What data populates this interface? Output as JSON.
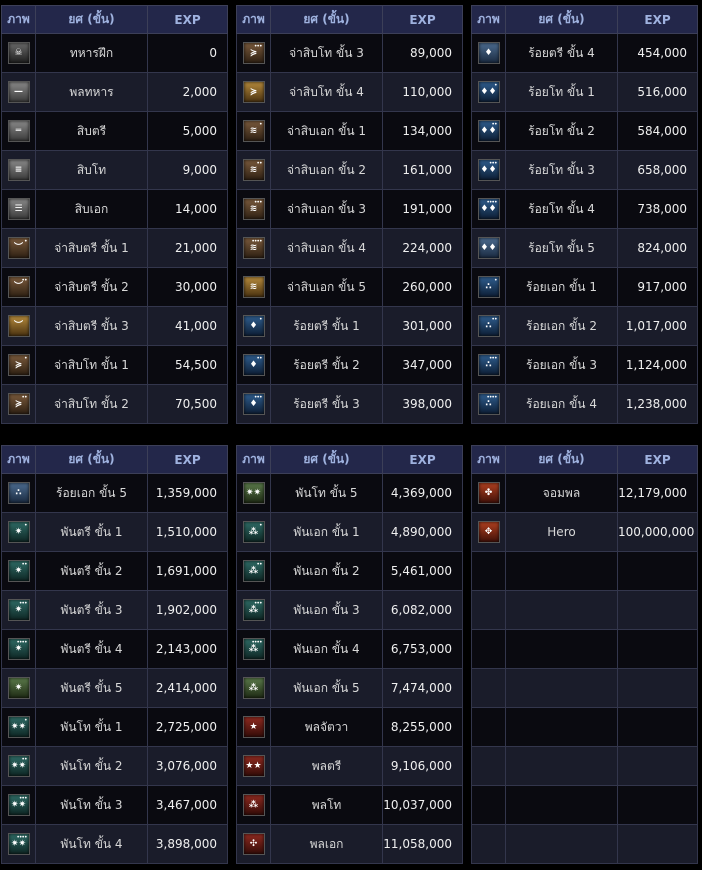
{
  "headers": {
    "image": "ภาพ",
    "rank": "ยศ (ขั้น)",
    "exp": "EXP"
  },
  "tables": [
    {
      "rows": [
        {
          "icon": "skull-badge-icon",
          "kind": "skull",
          "glyph": "☠",
          "dots": "",
          "name": "ทหารฝึก",
          "exp": "0"
        },
        {
          "icon": "one-bar-badge-icon",
          "kind": "gray",
          "glyph": "—",
          "dots": "",
          "name": "พลทหาร",
          "exp": "2,000"
        },
        {
          "icon": "two-bar-badge-icon",
          "kind": "gray",
          "glyph": "═",
          "dots": "",
          "name": "สิบตรี",
          "exp": "5,000"
        },
        {
          "icon": "three-bar-badge-icon",
          "kind": "gray",
          "glyph": "≡",
          "dots": "",
          "name": "สิบโท",
          "exp": "9,000"
        },
        {
          "icon": "four-bar-badge-icon",
          "kind": "gray",
          "glyph": "☰",
          "dots": "",
          "name": "สิบเอก",
          "exp": "14,000"
        },
        {
          "icon": "chevron-badge-icon",
          "kind": "brown",
          "glyph": "︶",
          "dots": "•",
          "name": "จ่าสิบตรี ขั้น 1",
          "exp": "21,000"
        },
        {
          "icon": "chevron-badge-icon",
          "kind": "brown",
          "glyph": "︶",
          "dots": "••",
          "name": "จ่าสิบตรี ขั้น 2",
          "exp": "30,000"
        },
        {
          "icon": "chevron-badge-icon",
          "kind": "gold",
          "glyph": "︶",
          "dots": "",
          "name": "จ่าสิบตรี ขั้น 3",
          "exp": "41,000"
        },
        {
          "icon": "double-chevron-badge-icon",
          "kind": "brown",
          "glyph": "≽",
          "dots": "•",
          "name": "จ่าสิบโท ขั้น 1",
          "exp": "54,500"
        },
        {
          "icon": "double-chevron-badge-icon",
          "kind": "brown",
          "glyph": "≽",
          "dots": "••",
          "name": "จ่าสิบโท ขั้น 2",
          "exp": "70,500"
        }
      ]
    },
    {
      "rows": [
        {
          "icon": "double-chevron-badge-icon",
          "kind": "brown",
          "glyph": "≽",
          "dots": "•••",
          "name": "จ่าสิบโท ขั้น 3",
          "exp": "89,000"
        },
        {
          "icon": "double-chevron-badge-icon",
          "kind": "gold",
          "glyph": "≽",
          "dots": "",
          "name": "จ่าสิบโท ขั้น 4",
          "exp": "110,000"
        },
        {
          "icon": "triple-chevron-badge-icon",
          "kind": "brown",
          "glyph": "≋",
          "dots": "•",
          "name": "จ่าสิบเอก ขั้น 1",
          "exp": "134,000"
        },
        {
          "icon": "triple-chevron-badge-icon",
          "kind": "brown",
          "glyph": "≋",
          "dots": "••",
          "name": "จ่าสิบเอก ขั้น 2",
          "exp": "161,000"
        },
        {
          "icon": "triple-chevron-badge-icon",
          "kind": "brown",
          "glyph": "≋",
          "dots": "•••",
          "name": "จ่าสิบเอก ขั้น 3",
          "exp": "191,000"
        },
        {
          "icon": "triple-chevron-badge-icon",
          "kind": "brown",
          "glyph": "≋",
          "dots": "••••",
          "name": "จ่าสิบเอก ขั้น 4",
          "exp": "224,000"
        },
        {
          "icon": "triple-chevron-badge-icon",
          "kind": "gold",
          "glyph": "≋",
          "dots": "",
          "name": "จ่าสิบเอก ขั้น 5",
          "exp": "260,000"
        },
        {
          "icon": "single-pip-badge-icon",
          "kind": "blue",
          "glyph": "♦",
          "dots": "•",
          "name": "ร้อยตรี ขั้น 1",
          "exp": "301,000"
        },
        {
          "icon": "single-pip-badge-icon",
          "kind": "blue",
          "glyph": "♦",
          "dots": "••",
          "name": "ร้อยตรี ขั้น 2",
          "exp": "347,000"
        },
        {
          "icon": "single-pip-badge-icon",
          "kind": "blue",
          "glyph": "♦",
          "dots": "•••",
          "name": "ร้อยตรี ขั้น 3",
          "exp": "398,000"
        }
      ]
    },
    {
      "rows": [
        {
          "icon": "single-pip-badge-icon",
          "kind": "blueg",
          "glyph": "♦",
          "dots": "",
          "name": "ร้อยตรี ขั้น 4",
          "exp": "454,000"
        },
        {
          "icon": "double-pip-badge-icon",
          "kind": "blue",
          "glyph": "♦♦",
          "dots": "•",
          "name": "ร้อยโท ขั้น 1",
          "exp": "516,000"
        },
        {
          "icon": "double-pip-badge-icon",
          "kind": "blue",
          "glyph": "♦♦",
          "dots": "••",
          "name": "ร้อยโท ขั้น 2",
          "exp": "584,000"
        },
        {
          "icon": "double-pip-badge-icon",
          "kind": "blue",
          "glyph": "♦♦",
          "dots": "•••",
          "name": "ร้อยโท ขั้น 3",
          "exp": "658,000"
        },
        {
          "icon": "double-pip-badge-icon",
          "kind": "blue",
          "glyph": "♦♦",
          "dots": "••••",
          "name": "ร้อยโท ขั้น 4",
          "exp": "738,000"
        },
        {
          "icon": "double-pip-badge-icon",
          "kind": "blueg",
          "glyph": "♦♦",
          "dots": "",
          "name": "ร้อยโท ขั้น 5",
          "exp": "824,000"
        },
        {
          "icon": "triple-pip-badge-icon",
          "kind": "blue",
          "glyph": "∴",
          "dots": "•",
          "name": "ร้อยเอก ขั้น 1",
          "exp": "917,000"
        },
        {
          "icon": "triple-pip-badge-icon",
          "kind": "blue",
          "glyph": "∴",
          "dots": "••",
          "name": "ร้อยเอก ขั้น 2",
          "exp": "1,017,000"
        },
        {
          "icon": "triple-pip-badge-icon",
          "kind": "blue",
          "glyph": "∴",
          "dots": "•••",
          "name": "ร้อยเอก ขั้น 3",
          "exp": "1,124,000"
        },
        {
          "icon": "triple-pip-badge-icon",
          "kind": "blue",
          "glyph": "∴",
          "dots": "••••",
          "name": "ร้อยเอก ขั้น 4",
          "exp": "1,238,000"
        }
      ]
    },
    {
      "rows": [
        {
          "icon": "triple-pip-badge-icon",
          "kind": "blueg",
          "glyph": "∴",
          "dots": "",
          "name": "ร้อยเอก ขั้น 5",
          "exp": "1,359,000"
        },
        {
          "icon": "single-star-badge-icon",
          "kind": "teal",
          "glyph": "✷",
          "dots": "•",
          "name": "พันตรี ขั้น 1",
          "exp": "1,510,000"
        },
        {
          "icon": "single-star-badge-icon",
          "kind": "teal",
          "glyph": "✷",
          "dots": "••",
          "name": "พันตรี ขั้น 2",
          "exp": "1,691,000"
        },
        {
          "icon": "single-star-badge-icon",
          "kind": "teal",
          "glyph": "✷",
          "dots": "•••",
          "name": "พันตรี ขั้น 3",
          "exp": "1,902,000"
        },
        {
          "icon": "single-star-badge-icon",
          "kind": "teal",
          "glyph": "✷",
          "dots": "••••",
          "name": "พันตรี ขั้น 4",
          "exp": "2,143,000"
        },
        {
          "icon": "single-star-badge-icon",
          "kind": "tealg",
          "glyph": "✷",
          "dots": "",
          "name": "พันตรี ขั้น 5",
          "exp": "2,414,000"
        },
        {
          "icon": "double-star-badge-icon",
          "kind": "teal",
          "glyph": "✷✷",
          "dots": "•",
          "name": "พันโท ขั้น 1",
          "exp": "2,725,000"
        },
        {
          "icon": "double-star-badge-icon",
          "kind": "teal",
          "glyph": "✷✷",
          "dots": "••",
          "name": "พันโท ขั้น 2",
          "exp": "3,076,000"
        },
        {
          "icon": "double-star-badge-icon",
          "kind": "teal",
          "glyph": "✷✷",
          "dots": "•••",
          "name": "พันโท ขั้น 3",
          "exp": "3,467,000"
        },
        {
          "icon": "double-star-badge-icon",
          "kind": "teal",
          "glyph": "✷✷",
          "dots": "••••",
          "name": "พันโท ขั้น 4",
          "exp": "3,898,000"
        }
      ]
    },
    {
      "rows": [
        {
          "icon": "double-star-badge-icon",
          "kind": "tealg",
          "glyph": "✷✷",
          "dots": "",
          "name": "พันโท ขั้น 5",
          "exp": "4,369,000"
        },
        {
          "icon": "triple-star-badge-icon",
          "kind": "teal",
          "glyph": "⁂",
          "dots": "•",
          "name": "พันเอก ขั้น 1",
          "exp": "4,890,000"
        },
        {
          "icon": "triple-star-badge-icon",
          "kind": "teal",
          "glyph": "⁂",
          "dots": "••",
          "name": "พันเอก ขั้น 2",
          "exp": "5,461,000"
        },
        {
          "icon": "triple-star-badge-icon",
          "kind": "teal",
          "glyph": "⁂",
          "dots": "•••",
          "name": "พันเอก ขั้น 3",
          "exp": "6,082,000"
        },
        {
          "icon": "triple-star-badge-icon",
          "kind": "teal",
          "glyph": "⁂",
          "dots": "••••",
          "name": "พันเอก ขั้น 4",
          "exp": "6,753,000"
        },
        {
          "icon": "triple-star-badge-icon",
          "kind": "tealg",
          "glyph": "⁂",
          "dots": "",
          "name": "พันเอก ขั้น 5",
          "exp": "7,474,000"
        },
        {
          "icon": "general-one-star-badge-icon",
          "kind": "red",
          "glyph": "★",
          "dots": "",
          "name": "พลจัตวา",
          "exp": "8,255,000"
        },
        {
          "icon": "general-two-star-badge-icon",
          "kind": "red",
          "glyph": "★★",
          "dots": "",
          "name": "พลตรี",
          "exp": "9,106,000"
        },
        {
          "icon": "general-three-star-badge-icon",
          "kind": "red",
          "glyph": "⁂",
          "dots": "",
          "name": "พลโท",
          "exp": "10,037,000"
        },
        {
          "icon": "general-four-star-badge-icon",
          "kind": "red",
          "glyph": "✣",
          "dots": "",
          "name": "พลเอก",
          "exp": "11,058,000"
        }
      ]
    },
    {
      "rows": [
        {
          "icon": "marshal-badge-icon",
          "kind": "redg",
          "glyph": "✤",
          "dots": "",
          "name": "จอมพล",
          "exp": "12,179,000"
        },
        {
          "icon": "hero-badge-icon",
          "kind": "redg",
          "glyph": "✥",
          "dots": "",
          "name": "Hero",
          "exp": "100,000,000"
        },
        {
          "icon": "",
          "kind": "",
          "glyph": "",
          "dots": "",
          "name": "",
          "exp": ""
        },
        {
          "icon": "",
          "kind": "",
          "glyph": "",
          "dots": "",
          "name": "",
          "exp": ""
        },
        {
          "icon": "",
          "kind": "",
          "glyph": "",
          "dots": "",
          "name": "",
          "exp": ""
        },
        {
          "icon": "",
          "kind": "",
          "glyph": "",
          "dots": "",
          "name": "",
          "exp": ""
        },
        {
          "icon": "",
          "kind": "",
          "glyph": "",
          "dots": "",
          "name": "",
          "exp": ""
        },
        {
          "icon": "",
          "kind": "",
          "glyph": "",
          "dots": "",
          "name": "",
          "exp": ""
        },
        {
          "icon": "",
          "kind": "",
          "glyph": "",
          "dots": "",
          "name": "",
          "exp": ""
        },
        {
          "icon": "",
          "kind": "",
          "glyph": "",
          "dots": "",
          "name": "",
          "exp": ""
        }
      ]
    }
  ]
}
